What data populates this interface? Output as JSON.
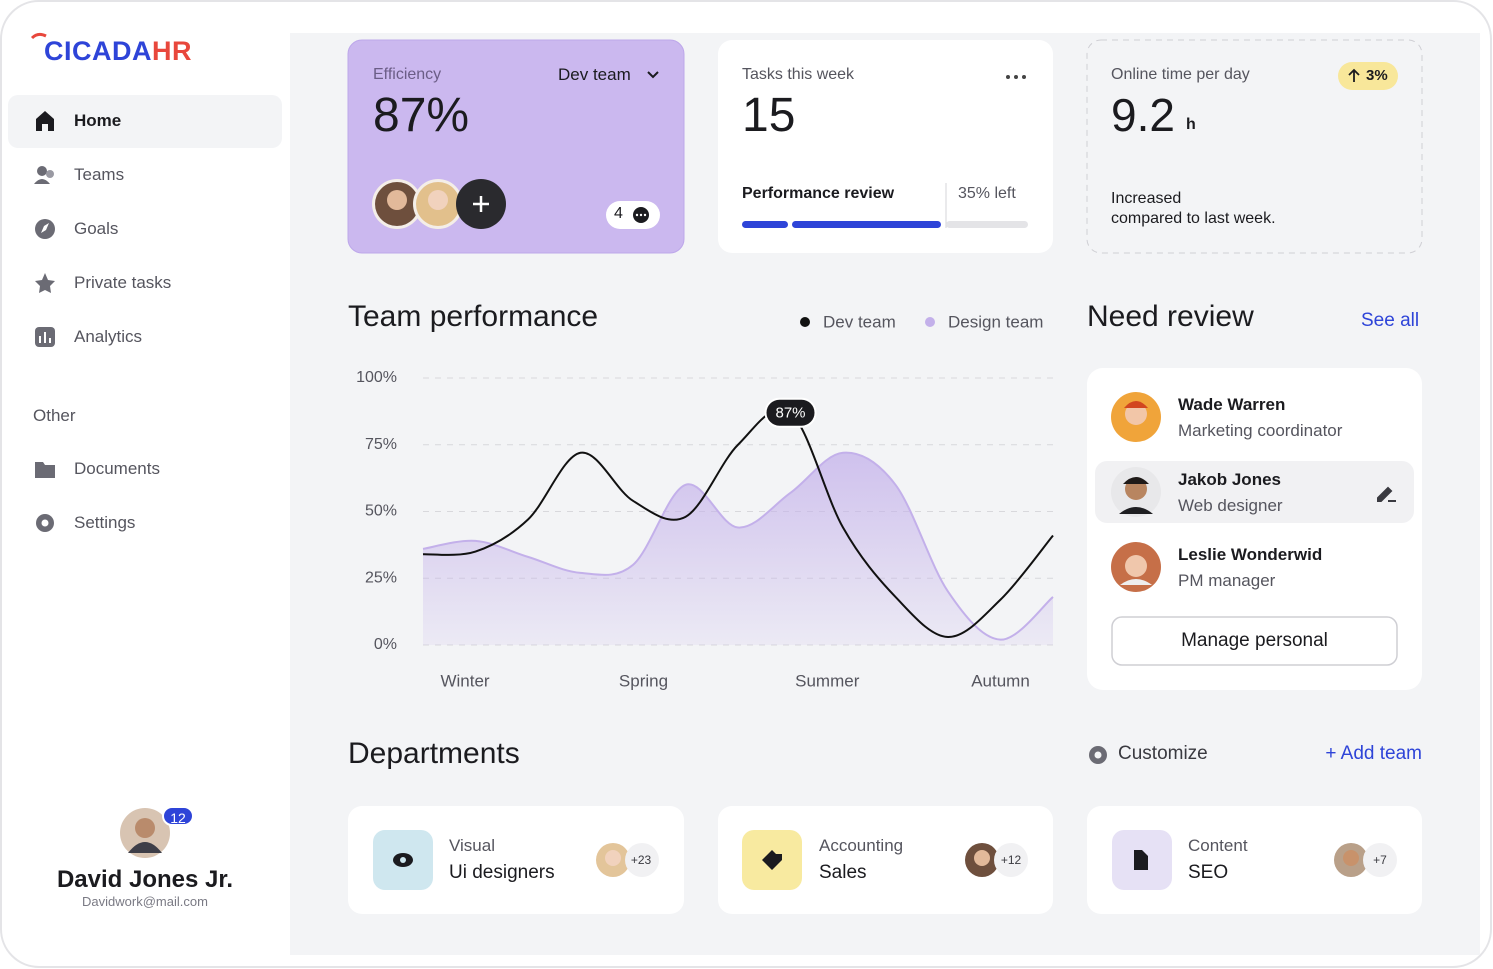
{
  "sidebar": {
    "logo_main": "CICADA",
    "logo_accent": "HR",
    "nav": [
      "Home",
      "Teams",
      "Goals",
      "Private tasks",
      "Analytics"
    ],
    "other_title": "Other",
    "other": [
      "Documents",
      "Settings"
    ],
    "user": {
      "badge": "12",
      "name": "David Jones Jr.",
      "email": "Davidwork@mail.com"
    }
  },
  "cards": {
    "efficiency": {
      "label": "Efficiency",
      "team": "Dev team",
      "value": "87%",
      "comments": "4"
    },
    "tasks": {
      "label": "Tasks this week",
      "value": "15",
      "progress_label": "Performance review",
      "left": "35% left"
    },
    "online": {
      "label": "Online time per day",
      "change": "3%",
      "value": "9.2",
      "unit": "h",
      "note": [
        "Increased",
        "compared to last week."
      ]
    }
  },
  "chart_data": {
    "type": "line",
    "title": "Team performance",
    "x": [
      0,
      1,
      2,
      3,
      4,
      5,
      6,
      7,
      8,
      9,
      10,
      11,
      12
    ],
    "xlim": [
      0,
      12
    ],
    "xticks": [
      {
        "value": 0.8,
        "label": "Winter"
      },
      {
        "value": 4.2,
        "label": "Spring"
      },
      {
        "value": 7.7,
        "label": "Summer"
      },
      {
        "value": 11,
        "label": "Autumn"
      }
    ],
    "ylim": [
      0,
      100
    ],
    "yticks": [
      {
        "value": 0,
        "label": "0%"
      },
      {
        "value": 25,
        "label": "25%"
      },
      {
        "value": 50,
        "label": "50%"
      },
      {
        "value": 75,
        "label": "75%"
      },
      {
        "value": 100,
        "label": "100%"
      }
    ],
    "grid": true,
    "series": [
      {
        "name": "Dev team",
        "color": "#111111",
        "values": [
          34,
          35,
          47,
          72,
          54,
          48,
          75,
          87,
          44,
          18,
          3,
          17,
          41
        ],
        "value_labels": [
          null,
          null,
          null,
          null,
          null,
          null,
          null,
          "87%",
          null,
          null,
          null,
          null,
          null
        ]
      },
      {
        "name": "Design team",
        "color": "#c3b0ea",
        "area": true,
        "values": [
          36,
          39,
          33,
          27,
          30,
          60,
          44,
          57,
          72,
          60,
          20,
          2,
          18
        ]
      }
    ]
  },
  "review": {
    "title": "Need review",
    "see_all": "See all",
    "people": [
      {
        "name": "Wade Warren",
        "role": "Marketing coordinator"
      },
      {
        "name": "Jakob Jones",
        "role": "Web designer"
      },
      {
        "name": "Leslie Wonderwid",
        "role": "PM manager"
      }
    ],
    "button": "Manage personal"
  },
  "departments": {
    "title": "Departments",
    "customize": "Customize",
    "add": "+ Add team",
    "items": [
      {
        "category": "Visual",
        "name": "Ui designers",
        "extra": "+23"
      },
      {
        "category": "Accounting",
        "name": "Sales",
        "extra": "+12"
      },
      {
        "category": "Content",
        "name": "SEO",
        "extra": "+7"
      }
    ]
  }
}
